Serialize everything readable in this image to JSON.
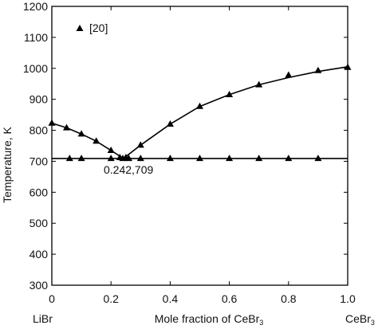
{
  "chart_data": {
    "type": "scatter",
    "ylabel": "Temperature, K",
    "xlabel_text": "Mole fraction of CeBr",
    "xlabel_subscript": "3",
    "x_left_label": "LiBr",
    "x_right_label_text": "CeBr",
    "x_right_label_subscript": "3",
    "xlim": [
      0,
      1.0
    ],
    "ylim": [
      300,
      1200
    ],
    "x_ticks": [
      "0",
      "0.2",
      "0.4",
      "0.6",
      "0.8",
      "1.0"
    ],
    "y_ticks": [
      "300",
      "400",
      "500",
      "600",
      "700",
      "800",
      "900",
      "1000",
      "1100",
      "1200"
    ],
    "legend": {
      "placement": "top-left",
      "entries": [
        "[20]"
      ]
    },
    "annotation": {
      "text": "0.242,709",
      "x": 0.242,
      "y": 709
    },
    "series": [
      {
        "name": "[20]",
        "marker": "triangle",
        "x": [
          0.0,
          0.05,
          0.1,
          0.15,
          0.2,
          0.23,
          0.25,
          0.3,
          0.4,
          0.5,
          0.6,
          0.7,
          0.8,
          0.9,
          1.0,
          0.06,
          0.1,
          0.2,
          0.24,
          0.26,
          0.3,
          0.4,
          0.5,
          0.6,
          0.7,
          0.8,
          0.9
        ],
        "y": [
          823,
          808,
          788,
          765,
          735,
          712,
          712,
          752,
          820,
          877,
          915,
          947,
          978,
          993,
          1003,
          709,
          709,
          709,
          709,
          709,
          709,
          709,
          709,
          709,
          709,
          709,
          709
        ]
      }
    ],
    "lines": [
      {
        "description": "liquidus",
        "x": [
          0.0,
          0.05,
          0.1,
          0.15,
          0.2,
          0.242,
          0.3,
          0.4,
          0.5,
          0.6,
          0.7,
          0.8,
          0.9,
          1.0
        ],
        "y": [
          823,
          808,
          788,
          765,
          735,
          709,
          752,
          820,
          877,
          915,
          947,
          970,
          990,
          1005
        ]
      },
      {
        "description": "eutectic",
        "x": [
          0.0,
          1.0
        ],
        "y": [
          709,
          709
        ]
      }
    ]
  }
}
